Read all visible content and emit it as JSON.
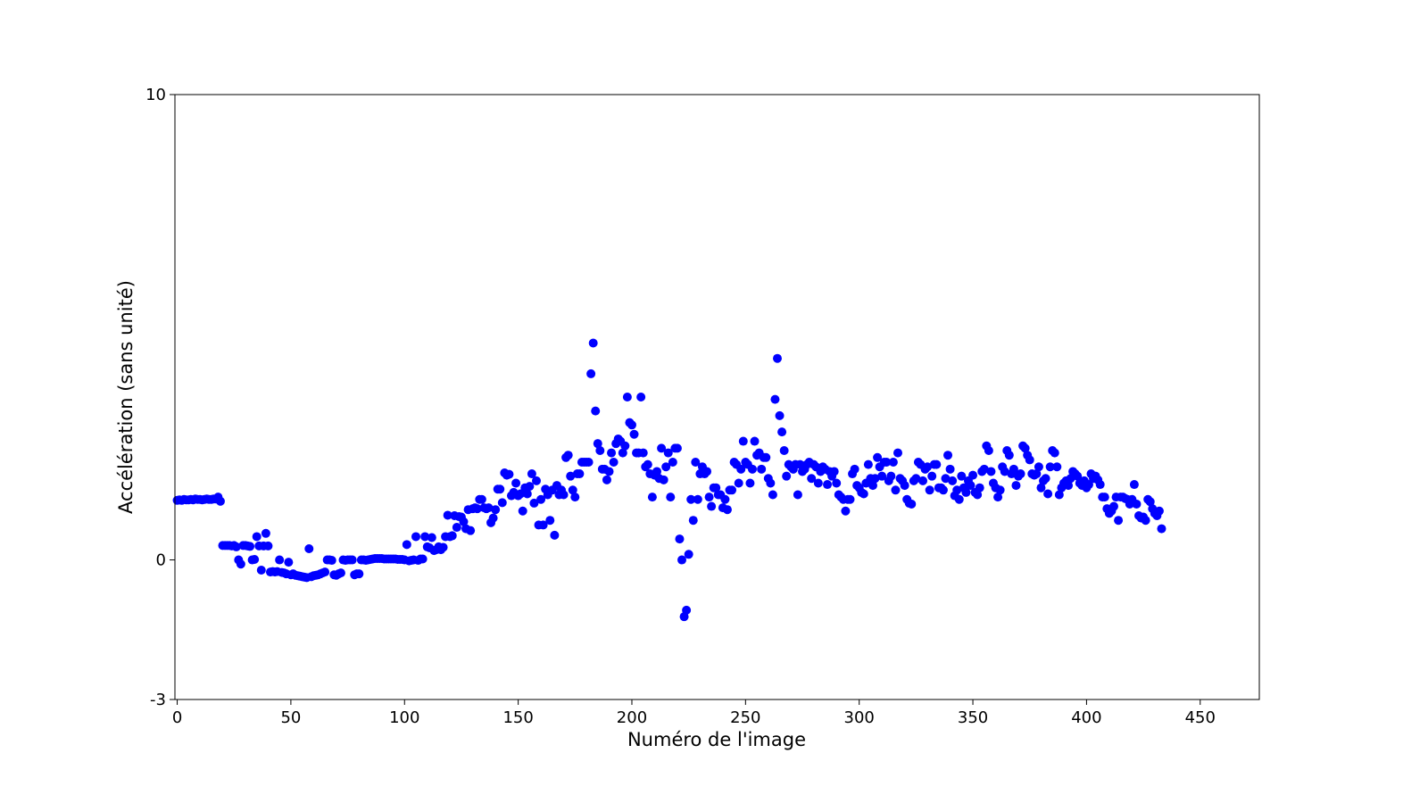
{
  "chart_data": {
    "type": "scatter",
    "xlabel": "Numéro de l'image",
    "ylabel": "Accélération (sans unité)",
    "xlim": [
      -1,
      476
    ],
    "ylim": [
      -3,
      10
    ],
    "xticks": [
      0,
      50,
      100,
      150,
      200,
      250,
      300,
      350,
      400,
      450
    ],
    "yticks": [
      -3,
      0,
      10
    ],
    "series": [
      {
        "color": "#0000ff",
        "x": [
          0,
          1,
          2,
          3,
          4,
          5,
          6,
          7,
          8,
          9,
          10,
          11,
          12,
          13,
          14,
          15,
          16,
          17,
          18,
          19,
          20,
          21,
          22,
          23,
          24,
          25,
          26,
          27,
          28,
          29,
          30,
          31,
          32,
          33,
          34,
          35,
          36,
          37,
          38,
          39,
          40,
          41,
          42,
          43,
          44,
          45,
          46,
          47,
          48,
          49,
          50,
          51,
          52,
          53,
          54,
          55,
          56,
          57,
          58,
          59,
          60,
          61,
          62,
          63,
          64,
          65,
          66,
          67,
          68,
          69,
          70,
          71,
          72,
          73,
          74,
          75,
          76,
          77,
          78,
          79,
          80,
          81,
          82,
          83,
          84,
          85,
          86,
          87,
          88,
          89,
          90,
          91,
          92,
          93,
          94,
          95,
          96,
          97,
          98,
          99,
          100,
          101,
          102,
          103,
          104,
          105,
          106,
          107,
          108,
          109,
          110,
          111,
          112,
          113,
          114,
          115,
          116,
          117,
          118,
          119,
          120,
          121,
          122,
          123,
          124,
          125,
          126,
          127,
          128,
          129,
          130,
          131,
          132,
          133,
          134,
          135,
          136,
          137,
          138,
          139,
          140,
          141,
          142,
          143,
          144,
          145,
          146,
          147,
          148,
          149,
          150,
          151,
          152,
          153,
          154,
          155,
          156,
          157,
          158,
          159,
          160,
          161,
          162,
          163,
          164,
          165,
          166,
          167,
          168,
          169,
          170,
          171,
          172,
          173,
          174,
          175,
          176,
          177,
          178,
          179,
          180,
          181,
          182,
          183,
          184,
          185,
          186,
          187,
          188,
          189,
          190,
          191,
          192,
          193,
          194,
          195,
          196,
          197,
          198,
          199,
          200,
          201,
          202,
          203,
          204,
          205,
          206,
          207,
          208,
          209,
          210,
          211,
          212,
          213,
          214,
          215,
          216,
          217,
          218,
          219,
          220,
          221,
          222,
          223,
          224,
          225,
          226,
          227,
          228,
          229,
          230,
          231,
          232,
          233,
          234,
          235,
          236,
          237,
          238,
          239,
          240,
          241,
          242,
          243,
          244,
          245,
          246,
          247,
          248,
          249,
          250,
          251,
          252,
          253,
          254,
          255,
          256,
          257,
          258,
          259,
          260,
          261,
          262,
          263,
          264,
          265,
          266,
          267,
          268,
          269,
          270,
          271,
          272,
          273,
          274,
          275,
          276,
          277,
          278,
          279,
          280,
          281,
          282,
          283,
          284,
          285,
          286,
          287,
          288,
          289,
          290,
          291,
          292,
          293,
          294,
          295,
          296,
          297,
          298,
          299,
          300,
          301,
          302,
          303,
          304,
          305,
          306,
          307,
          308,
          309,
          310,
          311,
          312,
          313,
          314,
          315,
          316,
          317,
          318,
          319,
          320,
          321,
          322,
          323,
          324,
          325,
          326,
          327,
          328,
          329,
          330,
          331,
          332,
          333,
          334,
          335,
          336,
          337,
          338,
          339,
          340,
          341,
          342,
          343,
          344,
          345,
          346,
          347,
          348,
          349,
          350,
          351,
          352,
          353,
          354,
          355,
          356,
          357,
          358,
          359,
          360,
          361,
          362,
          363,
          364,
          365,
          366,
          367,
          368,
          369,
          370,
          371,
          372,
          373,
          374,
          375,
          376,
          377,
          378,
          379,
          380,
          381,
          382,
          383,
          384,
          385,
          386,
          387,
          388,
          389,
          390,
          391,
          392,
          393,
          394,
          395,
          396,
          397,
          398,
          399,
          400,
          401,
          402,
          403,
          404,
          405,
          406,
          407,
          408,
          409,
          410,
          411,
          412,
          413,
          414,
          415,
          416,
          417,
          418,
          419,
          420,
          421,
          422,
          423,
          424,
          425,
          426,
          427,
          428,
          429,
          430,
          431,
          432,
          433
        ],
        "values": [
          1.28,
          1.29,
          1.28,
          1.3,
          1.29,
          1.29,
          1.3,
          1.29,
          1.31,
          1.3,
          1.3,
          1.29,
          1.3,
          1.31,
          1.3,
          1.3,
          1.31,
          1.31,
          1.35,
          1.26,
          0.31,
          0.31,
          0.31,
          0.31,
          0.3,
          0.31,
          0.28,
          0.0,
          -0.09,
          0.31,
          0.31,
          0.3,
          0.29,
          0.0,
          0.01,
          0.5,
          0.3,
          -0.22,
          0.3,
          0.57,
          0.3,
          -0.26,
          -0.25,
          -0.26,
          -0.25,
          0.0,
          -0.27,
          -0.28,
          -0.3,
          -0.05,
          -0.32,
          -0.3,
          -0.33,
          -0.34,
          -0.35,
          -0.36,
          -0.37,
          -0.38,
          0.24,
          -0.36,
          -0.34,
          -0.33,
          -0.32,
          -0.3,
          -0.28,
          -0.26,
          0.0,
          0.0,
          -0.01,
          -0.32,
          -0.33,
          -0.3,
          -0.28,
          0.0,
          -0.01,
          0.0,
          0.0,
          0.0,
          -0.32,
          -0.3,
          -0.3,
          0.0,
          0.0,
          -0.01,
          0.0,
          0.01,
          0.02,
          0.03,
          0.03,
          0.03,
          0.03,
          0.02,
          0.02,
          0.02,
          0.02,
          0.02,
          0.02,
          0.01,
          0.01,
          0.01,
          0.0,
          0.33,
          -0.02,
          -0.01,
          0.0,
          0.5,
          -0.01,
          0.02,
          0.02,
          0.5,
          0.28,
          0.26,
          0.48,
          0.2,
          0.22,
          0.28,
          0.22,
          0.27,
          0.5,
          0.96,
          0.5,
          0.52,
          0.95,
          0.7,
          0.93,
          0.92,
          0.82,
          0.67,
          1.08,
          0.63,
          1.1,
          1.12,
          1.1,
          1.3,
          1.3,
          1.12,
          1.1,
          1.12,
          0.8,
          0.9,
          1.08,
          1.52,
          1.52,
          1.23,
          1.87,
          1.82,
          1.84,
          1.38,
          1.45,
          1.65,
          1.38,
          1.42,
          1.05,
          1.55,
          1.42,
          1.58,
          1.85,
          1.22,
          1.7,
          0.75,
          1.3,
          0.75,
          1.52,
          1.4,
          0.85,
          1.5,
          0.53,
          1.6,
          1.4,
          1.5,
          1.4,
          2.2,
          2.25,
          1.8,
          1.5,
          1.35,
          1.85,
          1.85,
          2.1,
          2.1,
          2.1,
          2.1,
          4.0,
          4.66,
          3.2,
          2.5,
          2.35,
          1.95,
          1.95,
          1.72,
          1.9,
          2.3,
          2.1,
          2.5,
          2.6,
          2.55,
          2.3,
          2.45,
          3.5,
          2.95,
          2.9,
          2.7,
          2.3,
          2.3,
          3.5,
          2.3,
          2.0,
          2.05,
          1.85,
          1.35,
          1.82,
          1.9,
          1.75,
          2.4,
          1.72,
          2.0,
          2.3,
          1.35,
          2.1,
          2.4,
          2.4,
          0.45,
          0.0,
          -1.22,
          -1.08,
          0.12,
          1.3,
          0.85,
          2.1,
          1.3,
          1.85,
          2.0,
          1.85,
          1.9,
          1.35,
          1.15,
          1.55,
          1.55,
          1.4,
          1.4,
          1.12,
          1.3,
          1.08,
          1.5,
          1.5,
          2.1,
          2.05,
          1.65,
          1.95,
          2.55,
          2.1,
          2.05,
          1.65,
          1.95,
          2.55,
          2.25,
          2.3,
          1.95,
          2.2,
          2.2,
          1.75,
          1.65,
          1.4,
          3.45,
          4.33,
          3.1,
          2.75,
          2.35,
          1.8,
          2.05,
          2.0,
          1.95,
          2.05,
          1.4,
          2.05,
          1.9,
          1.95,
          2.05,
          2.1,
          1.75,
          2.05,
          2.0,
          1.65,
          1.9,
          2.0,
          1.95,
          1.62,
          1.9,
          1.8,
          1.9,
          1.65,
          1.4,
          1.35,
          1.3,
          1.05,
          1.3,
          1.3,
          1.85,
          1.95,
          1.6,
          1.55,
          1.45,
          1.42,
          1.65,
          2.05,
          1.75,
          1.6,
          1.75,
          2.2,
          2.0,
          1.8,
          2.1,
          2.1,
          1.7,
          1.8,
          2.1,
          1.5,
          2.3,
          1.75,
          1.7,
          1.6,
          1.3,
          1.22,
          1.2,
          1.7,
          1.75,
          2.1,
          2.05,
          1.7,
          1.95,
          2.0,
          1.5,
          1.8,
          2.05,
          2.05,
          1.55,
          1.55,
          1.5,
          1.75,
          2.25,
          1.95,
          1.7,
          1.38,
          1.5,
          1.3,
          1.8,
          1.55,
          1.45,
          1.7,
          1.6,
          1.82,
          1.45,
          1.4,
          1.55,
          1.9,
          1.95,
          2.45,
          2.35,
          1.9,
          1.65,
          1.55,
          1.35,
          1.5,
          2.0,
          1.9,
          2.35,
          2.25,
          1.85,
          1.95,
          1.6,
          1.8,
          1.85,
          2.45,
          2.4,
          2.25,
          2.15,
          1.85,
          1.82,
          1.85,
          2.0,
          1.55,
          1.7,
          1.75,
          1.42,
          2.0,
          2.35,
          2.3,
          2.0,
          1.4,
          1.55,
          1.65,
          1.7,
          1.6,
          1.75,
          1.9,
          1.85,
          1.8,
          1.65,
          1.6,
          1.7,
          1.55,
          1.62,
          1.85,
          1.75,
          1.8,
          1.72,
          1.62,
          1.35,
          1.35,
          1.1,
          1.0,
          1.05,
          1.15,
          1.35,
          0.85,
          1.35,
          1.35,
          1.32,
          1.3,
          1.2,
          1.3,
          1.62,
          1.2,
          0.95,
          0.9,
          0.92,
          0.85,
          1.3,
          1.25,
          1.1,
          1.0,
          0.95,
          1.05,
          0.67
        ]
      }
    ]
  }
}
